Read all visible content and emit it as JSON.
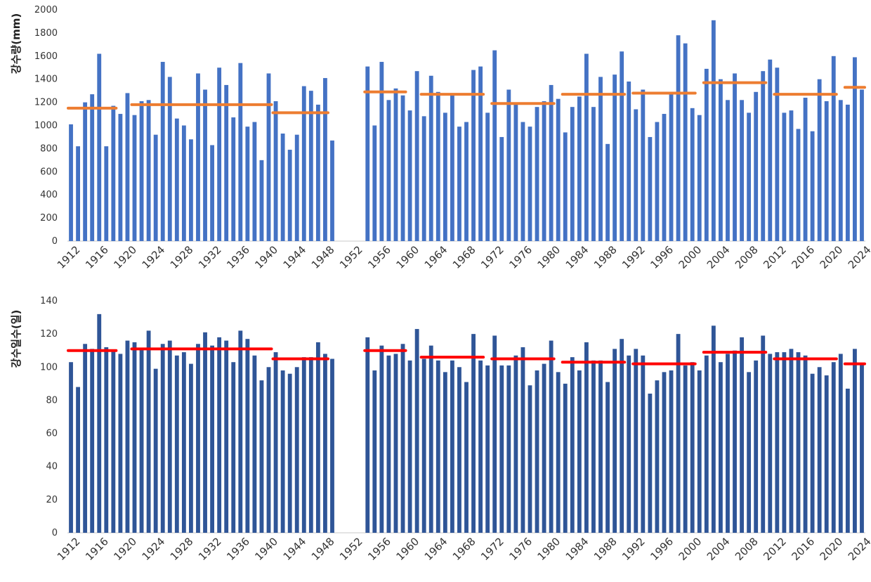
{
  "colors": {
    "precip_bar": "#4472c4",
    "days_bar": "#2f5597",
    "precip_mean": "#ed7d31",
    "days_mean": "#ff0000"
  },
  "chart_data": [
    {
      "type": "bar",
      "ylabel": "강수량(mm)",
      "ylim": [
        0,
        2000
      ],
      "y_ticks": [
        "0",
        "200",
        "400",
        "600",
        "800",
        "1000",
        "1200",
        "1400",
        "1600",
        "1800",
        "2000"
      ],
      "x_tick_labels": [
        "1912",
        "1916",
        "1920",
        "1924",
        "1928",
        "1932",
        "1936",
        "1940",
        "1944",
        "1948",
        "1952",
        "1956",
        "1960",
        "1964",
        "1968",
        "1972",
        "1976",
        "1980",
        "1984",
        "1988",
        "1992",
        "1996",
        "2000",
        "2004",
        "2008",
        "2012",
        "2016",
        "2020",
        "2024"
      ],
      "x_range": [
        1912,
        2024
      ],
      "segments": [
        {
          "start_year": 1912,
          "values": [
            1010,
            820,
            1200,
            1270,
            1620,
            820,
            1170,
            1100,
            1280,
            1090,
            1210,
            1220,
            920,
            1550,
            1420,
            1060,
            1000,
            880,
            1450,
            1310,
            830,
            1500,
            1350,
            1070,
            1540,
            990,
            1030,
            700,
            1450,
            1210,
            930,
            790,
            920,
            1340,
            1300,
            1180,
            1410,
            870
          ]
        },
        {
          "start_year": 1954,
          "values": [
            1510,
            1000,
            1550,
            1220,
            1320,
            1260,
            1130,
            1470,
            1080,
            1430,
            1290,
            1110,
            1270,
            990,
            1030,
            1480,
            1510,
            1110,
            1650,
            900,
            1310,
            1180,
            1030,
            990,
            1160,
            1210,
            1350,
            1230,
            940,
            1160,
            1250,
            1620,
            1160,
            1420,
            840,
            1440,
            1640,
            1380,
            1140,
            1310,
            900,
            1030,
            1100,
            1270,
            1780,
            1710,
            1150,
            1090,
            1490,
            1910,
            1400,
            1220,
            1450,
            1220,
            1110,
            1290,
            1470,
            1570,
            1500,
            1110,
            1130,
            970,
            1240,
            950,
            1400,
            1210,
            1600,
            1220,
            1180,
            1590,
            1310
          ]
        }
      ],
      "mean_lines": [
        {
          "from": 1912,
          "to": 1918,
          "value": 1150
        },
        {
          "from": 1921,
          "to": 1930,
          "value": 1180
        },
        {
          "from": 1931,
          "to": 1940,
          "value": 1180
        },
        {
          "from": 1941,
          "to": 1948,
          "value": 1110
        },
        {
          "from": 1954,
          "to": 1959,
          "value": 1290
        },
        {
          "from": 1962,
          "to": 1970,
          "value": 1270
        },
        {
          "from": 1972,
          "to": 1980,
          "value": 1190
        },
        {
          "from": 1982,
          "to": 1990,
          "value": 1270
        },
        {
          "from": 1992,
          "to": 2000,
          "value": 1280
        },
        {
          "from": 2002,
          "to": 2010,
          "value": 1370
        },
        {
          "from": 2012,
          "to": 2020,
          "value": 1270
        },
        {
          "from": 2022,
          "to": 2024,
          "value": 1330
        }
      ]
    },
    {
      "type": "bar",
      "ylabel": "강수일수(일)",
      "ylim": [
        0,
        140
      ],
      "y_ticks": [
        "0",
        "20",
        "40",
        "60",
        "80",
        "100",
        "120",
        "140"
      ],
      "x_tick_labels": [
        "1912",
        "1916",
        "1920",
        "1924",
        "1928",
        "1932",
        "1936",
        "1940",
        "1944",
        "1948",
        "1952",
        "1956",
        "1960",
        "1964",
        "1968",
        "1972",
        "1976",
        "1980",
        "1984",
        "1988",
        "1992",
        "1996",
        "2000",
        "2004",
        "2008",
        "2012",
        "2016",
        "2020",
        "2024"
      ],
      "x_range": [
        1912,
        2024
      ],
      "segments": [
        {
          "start_year": 1912,
          "values": [
            103,
            88,
            114,
            111,
            132,
            112,
            110,
            108,
            116,
            115,
            111,
            122,
            99,
            114,
            116,
            107,
            109,
            102,
            114,
            121,
            113,
            118,
            116,
            103,
            122,
            117,
            107,
            92,
            100,
            109,
            98,
            96,
            100,
            106,
            106,
            115,
            108,
            105
          ]
        },
        {
          "start_year": 1954,
          "values": [
            118,
            98,
            113,
            107,
            108,
            114,
            104,
            123,
            105,
            113,
            104,
            97,
            104,
            100,
            91,
            120,
            104,
            101,
            119,
            101,
            101,
            107,
            112,
            89,
            98,
            102,
            116,
            97,
            90,
            106,
            98,
            115,
            104,
            104,
            91,
            111,
            117,
            107,
            111,
            107,
            84,
            92,
            97,
            98,
            120,
            101,
            103,
            98,
            107,
            125,
            103,
            108,
            110,
            118,
            97,
            104,
            119,
            108,
            109,
            109,
            111,
            109,
            107,
            96,
            100,
            95,
            103,
            108,
            87,
            111,
            102
          ]
        }
      ],
      "mean_lines": [
        {
          "from": 1912,
          "to": 1918,
          "value": 110
        },
        {
          "from": 1921,
          "to": 1930,
          "value": 111
        },
        {
          "from": 1931,
          "to": 1940,
          "value": 111
        },
        {
          "from": 1941,
          "to": 1948,
          "value": 105
        },
        {
          "from": 1954,
          "to": 1959,
          "value": 110
        },
        {
          "from": 1962,
          "to": 1970,
          "value": 106
        },
        {
          "from": 1972,
          "to": 1980,
          "value": 105
        },
        {
          "from": 1982,
          "to": 1990,
          "value": 103
        },
        {
          "from": 1992,
          "to": 2000,
          "value": 102
        },
        {
          "from": 2002,
          "to": 2010,
          "value": 109
        },
        {
          "from": 2012,
          "to": 2020,
          "value": 105
        },
        {
          "from": 2022,
          "to": 2024,
          "value": 102
        }
      ]
    }
  ]
}
